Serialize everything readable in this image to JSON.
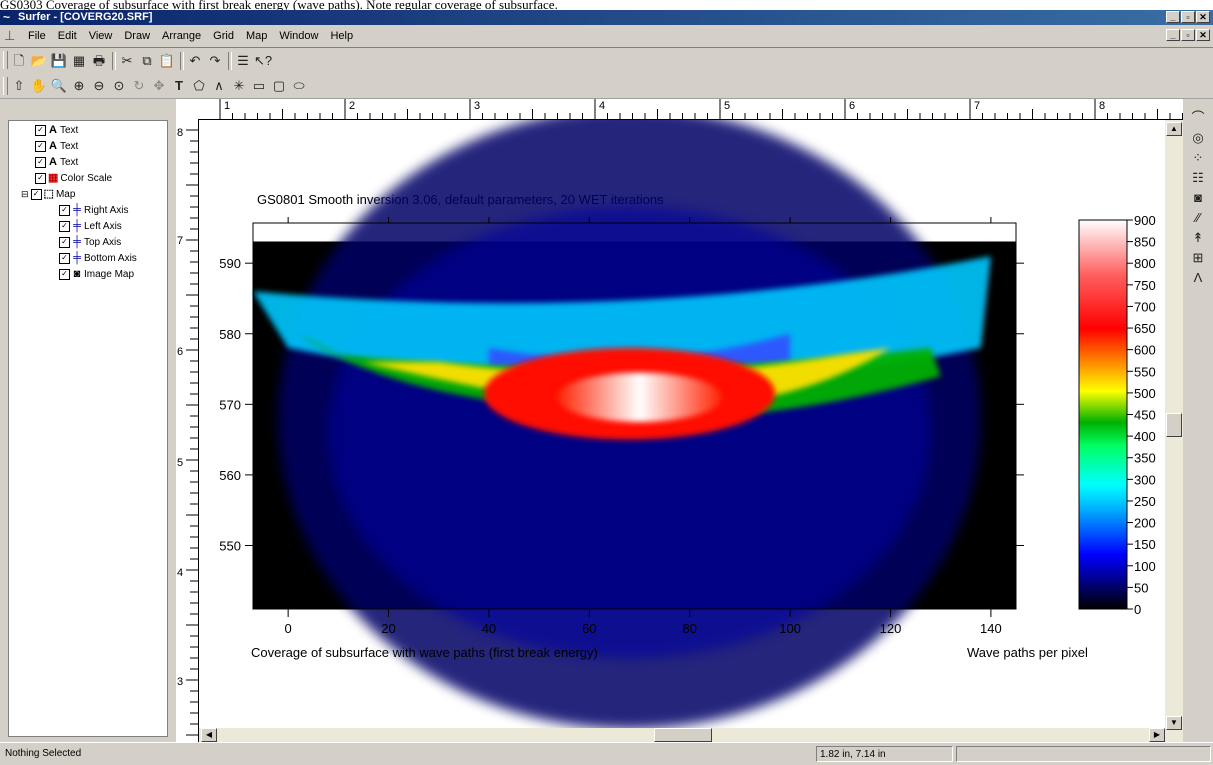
{
  "caption": "GS0303 Coverage of subsurface with first break energy (wave paths). Note regular coverage of subsurface.",
  "window": {
    "title": "Surfer - [COVERG20.SRF]",
    "buttons": [
      "_",
      "▫",
      "✕"
    ]
  },
  "menu": {
    "items": [
      "File",
      "Edit",
      "View",
      "Draw",
      "Arrange",
      "Grid",
      "Map",
      "Window",
      "Help"
    ]
  },
  "toolbar1": {
    "icons": [
      "new-file-icon",
      "open-file-icon",
      "save-icon",
      "grid-data-icon",
      "print-icon",
      "cut-icon",
      "copy-icon",
      "paste-icon",
      "undo-icon",
      "redo-icon",
      "object-manager-icon",
      "help-pointer-icon"
    ]
  },
  "toolbar2": {
    "icons": [
      "select-arrow-icon",
      "hand-pan-icon",
      "zoom-rect-icon",
      "zoom-in-icon",
      "zoom-out-icon",
      "zoom-fit-icon",
      "rotate-icon",
      "move-icon",
      "text-icon",
      "polygon-icon",
      "polyline-icon",
      "symbol-icon",
      "rectangle-icon",
      "rounded-rectangle-icon",
      "ellipse-icon"
    ]
  },
  "object_manager": {
    "items": [
      {
        "label": "Text",
        "icon": "A",
        "level": 1
      },
      {
        "label": "Text",
        "icon": "A",
        "level": 1
      },
      {
        "label": "Text",
        "icon": "A",
        "level": 1
      },
      {
        "label": "Color Scale",
        "icon": "▦",
        "level": 1
      },
      {
        "label": "Map",
        "icon": "⬚",
        "level": 1
      },
      {
        "label": "Right Axis",
        "icon": "╪",
        "level": 2
      },
      {
        "label": "Left Axis",
        "icon": "╪",
        "level": 2
      },
      {
        "label": "Top Axis",
        "icon": "╪",
        "level": 2
      },
      {
        "label": "Bottom Axis",
        "icon": "╪",
        "level": 2
      },
      {
        "label": "Image Map",
        "icon": "◙",
        "level": 2
      }
    ]
  },
  "rulers": {
    "horizontal": [
      "1",
      "2",
      "3",
      "4",
      "5",
      "6",
      "7",
      "8"
    ],
    "vertical": [
      "8",
      "7",
      "6",
      "5",
      "4",
      "3"
    ]
  },
  "plot": {
    "title": "GS0801 Smooth inversion 3.06, default parameters, 20 WET iterations",
    "xlabel": "Coverage of subsurface with wave paths (first break energy)",
    "colorbar_label": "Wave paths per pixel",
    "x_ticks": [
      "0",
      "20",
      "40",
      "60",
      "80",
      "100",
      "120",
      "140"
    ],
    "y_ticks": [
      "590",
      "580",
      "570",
      "560",
      "550"
    ],
    "colorbar_ticks": [
      "900",
      "850",
      "800",
      "750",
      "700",
      "650",
      "600",
      "550",
      "500",
      "450",
      "400",
      "350",
      "300",
      "250",
      "200",
      "150",
      "100",
      "50",
      "0"
    ]
  },
  "chart_data": {
    "type": "heatmap",
    "title": "GS0801 Smooth inversion 3.06, default parameters, 20 WET iterations",
    "xlabel": "Coverage of subsurface with wave paths (first break energy)",
    "ylabel": "",
    "colorbar_label": "Wave paths per pixel",
    "xlim": [
      -7,
      145
    ],
    "ylim": [
      541,
      593
    ],
    "x_ticks": [
      0,
      20,
      40,
      60,
      80,
      100,
      120,
      140
    ],
    "y_ticks": [
      550,
      560,
      570,
      580,
      590
    ],
    "color_range": [
      0,
      900
    ],
    "colorbar_ticks": [
      0,
      50,
      100,
      150,
      200,
      250,
      300,
      350,
      400,
      450,
      500,
      550,
      600,
      650,
      700,
      750,
      800,
      850,
      900
    ],
    "colors": [
      "#000000",
      "#000080",
      "#0000ff",
      "#00ffff",
      "#00c000",
      "#ffff00",
      "#ff0000",
      "#ffffff"
    ]
  },
  "statusbar": {
    "left": "Nothing Selected",
    "coords": "1.82 in, 7.14 in"
  }
}
